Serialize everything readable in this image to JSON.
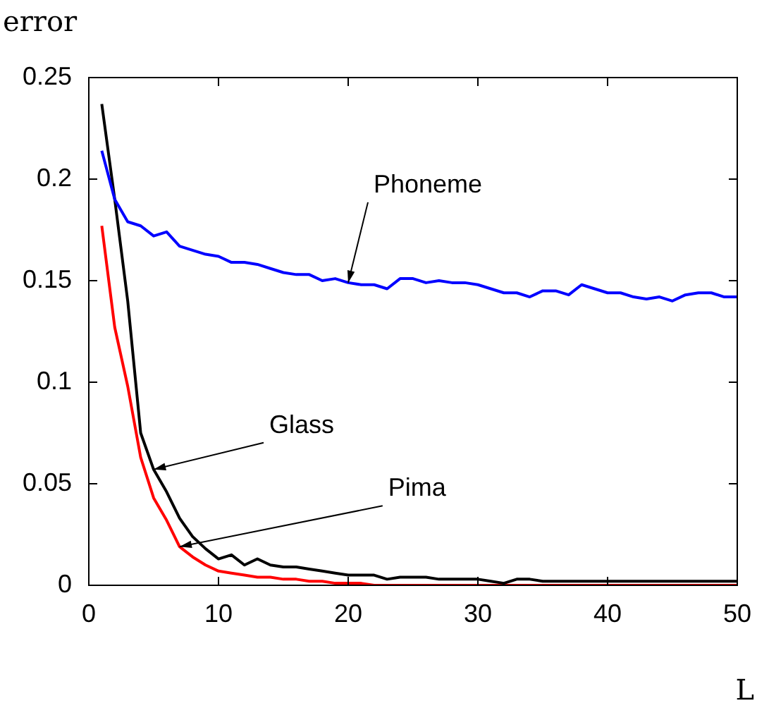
{
  "chart_data": {
    "type": "line",
    "xlabel": "L",
    "ylabel": "error",
    "x": [
      1,
      2,
      3,
      4,
      5,
      6,
      7,
      8,
      9,
      10,
      11,
      12,
      13,
      14,
      15,
      16,
      17,
      18,
      19,
      20,
      21,
      22,
      23,
      24,
      25,
      26,
      27,
      28,
      29,
      30,
      31,
      32,
      33,
      34,
      35,
      36,
      37,
      38,
      39,
      40,
      41,
      42,
      43,
      44,
      45,
      46,
      47,
      48,
      49,
      50
    ],
    "xlim": [
      0,
      50
    ],
    "xticks": [
      0,
      10,
      20,
      30,
      40,
      50
    ],
    "ylim": [
      0,
      0.25
    ],
    "yticks": [
      0,
      0.05,
      0.1,
      0.15,
      0.2,
      0.25
    ],
    "marker": "none",
    "line_style": "solid",
    "legend": false,
    "series": [
      {
        "color": "#0000ff",
        "values": [
          0.214,
          0.19,
          0.179,
          0.177,
          0.172,
          0.174,
          0.167,
          0.165,
          0.163,
          0.162,
          0.159,
          0.159,
          0.158,
          0.156,
          0.154,
          0.153,
          0.153,
          0.15,
          0.151,
          0.149,
          0.148,
          0.148,
          0.146,
          0.151,
          0.151,
          0.149,
          0.15,
          0.149,
          0.149,
          0.148,
          0.146,
          0.144,
          0.144,
          0.142,
          0.145,
          0.145,
          0.143,
          0.148,
          0.146,
          0.144,
          0.144,
          0.142,
          0.141,
          0.142,
          0.14,
          0.143,
          0.144,
          0.144,
          0.142,
          0.142
        ]
      },
      {
        "color": "#000000",
        "values": [
          0.237,
          0.19,
          0.14,
          0.075,
          0.057,
          0.046,
          0.033,
          0.024,
          0.018,
          0.013,
          0.015,
          0.01,
          0.013,
          0.01,
          0.009,
          0.009,
          0.008,
          0.007,
          0.006,
          0.005,
          0.005,
          0.005,
          0.003,
          0.004,
          0.004,
          0.004,
          0.003,
          0.003,
          0.003,
          0.003,
          0.002,
          0.001,
          0.003,
          0.003,
          0.002,
          0.002,
          0.002,
          0.002,
          0.002,
          0.002,
          0.002,
          0.002,
          0.002,
          0.002,
          0.002,
          0.002,
          0.002,
          0.002,
          0.002,
          0.002
        ]
      },
      {
        "color": "#ff0000",
        "values": [
          0.177,
          0.127,
          0.098,
          0.063,
          0.043,
          0.032,
          0.019,
          0.014,
          0.01,
          0.007,
          0.006,
          0.005,
          0.004,
          0.004,
          0.003,
          0.003,
          0.002,
          0.002,
          0.001,
          0.001,
          0.001,
          0,
          0,
          0,
          0,
          0,
          0,
          0,
          0,
          0,
          0,
          0,
          0,
          0,
          0,
          0,
          0,
          0,
          0,
          0,
          0,
          0,
          0,
          0,
          0,
          0,
          0,
          0,
          0,
          0
        ]
      }
    ],
    "annotations": [
      {
        "text": "Phoneme",
        "x": 20,
        "y": 0.149
      },
      {
        "text": "Glass",
        "x": 5,
        "y": 0.057
      },
      {
        "text": "Pima",
        "x": 7,
        "y": 0.019
      }
    ]
  }
}
